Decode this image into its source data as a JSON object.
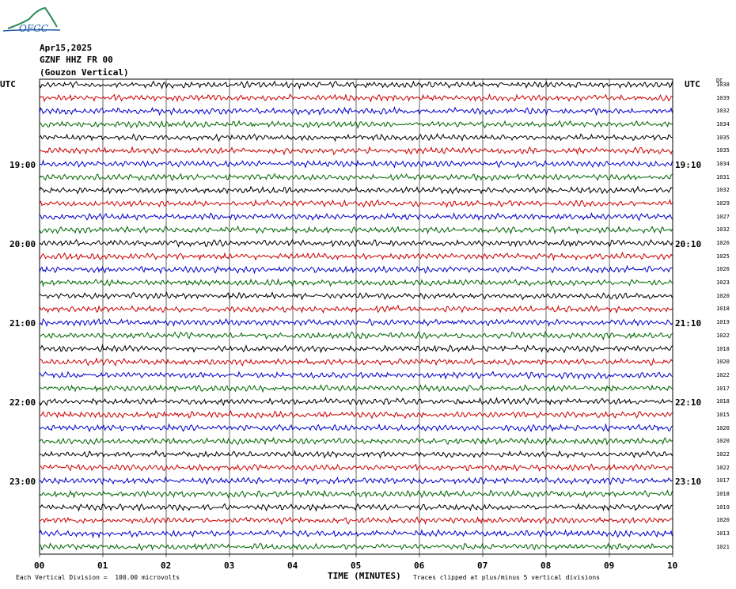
{
  "logo": {
    "text": "OFGC"
  },
  "header": {
    "date": "Apr15,2025",
    "station": "GZNF HHZ FR 00",
    "location": "(Gouzon Vertical)"
  },
  "utc_left": "UTC",
  "utc_right": "UTC",
  "dc_header": "DC",
  "left_hours": [
    "19:00",
    "20:00",
    "21:00",
    "22:00",
    "23:00"
  ],
  "right_hours": [
    "19:10",
    "20:10",
    "21:10",
    "22:10",
    "23:10"
  ],
  "dc_values": [
    "1038",
    "1039",
    "1032",
    "1034",
    "1035",
    "1035",
    "1034",
    "1031",
    "1032",
    "1029",
    "1027",
    "1032",
    "1026",
    "1025",
    "1026",
    "1023",
    "1020",
    "1018",
    "1019",
    "1022",
    "1018",
    "1020",
    "1022",
    "1017",
    "1018",
    "1015",
    "1020",
    "1020",
    "1022",
    "1022",
    "1017",
    "1018",
    "1019",
    "1020",
    "1013",
    "1021"
  ],
  "footer": {
    "scale_note": "Each Vertical Division =  100.00 microvolts",
    "xlabel": "TIME (MINUTES)",
    "clip_note": "Traces clipped at plus/minus 5 vertical divisions"
  },
  "chart_data": {
    "type": "line",
    "title": "GZNF HHZ FR 00 (Gouzon Vertical) Apr15,2025",
    "xlabel": "TIME (MINUTES)",
    "x_ticks": [
      "00",
      "01",
      "02",
      "03",
      "04",
      "05",
      "06",
      "07",
      "08",
      "09",
      "10"
    ],
    "xlim": [
      0,
      10
    ],
    "trace_count": 36,
    "trace_minutes": 10,
    "trace_colors": [
      "#000000",
      "#cc0000",
      "#0000cc",
      "#006600"
    ],
    "grid": true,
    "clip_divisions": 5,
    "microvolts_per_division": 100.0
  }
}
